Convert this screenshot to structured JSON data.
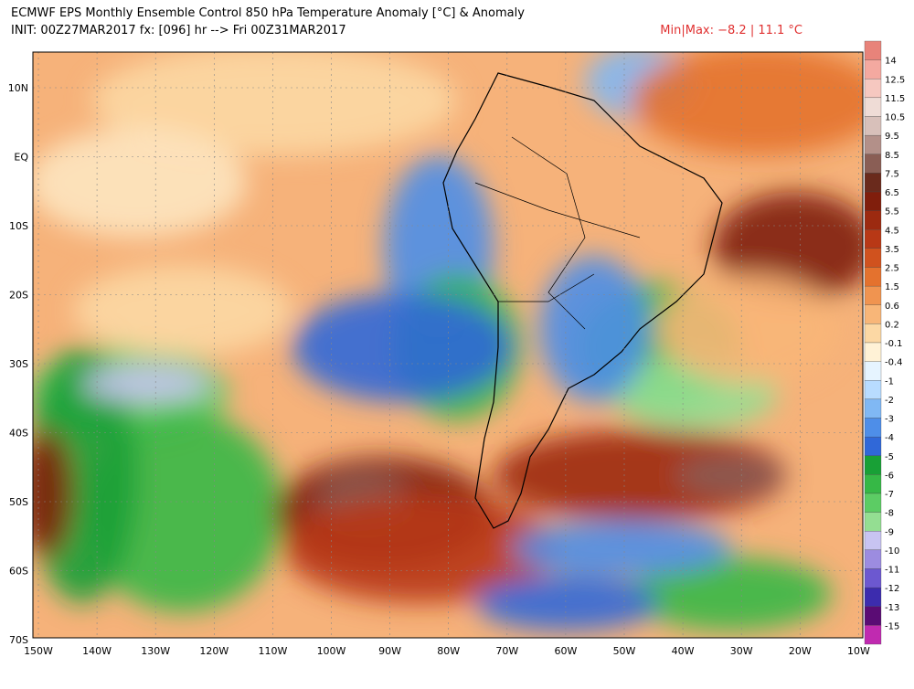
{
  "header": {
    "title": "ECMWF EPS Monthly Ensemble Control 850 hPa Temperature Anomaly [°C] & Anomaly",
    "init": "INIT: 00Z27MAR2017  fx: [096] hr --> Fri 00Z31MAR2017",
    "minmax": "Min|Max: −8.2 | 11.1 °C"
  },
  "map": {
    "lat_labels": [
      "10N",
      "EQ",
      "10S",
      "20S",
      "30S",
      "40S",
      "50S",
      "60S",
      "70S"
    ],
    "lon_labels": [
      "150W",
      "140W",
      "130W",
      "120W",
      "110W",
      "100W",
      "90W",
      "80W",
      "70W",
      "60W",
      "50W",
      "40W",
      "30W",
      "20W",
      "10W"
    ]
  },
  "colorbar": {
    "labels": [
      "14",
      "12.5",
      "11.5",
      "10.5",
      "9.5",
      "8.5",
      "7.5",
      "6.5",
      "5.5",
      "4.5",
      "3.5",
      "2.5",
      "1.5",
      "0.6",
      "0.2",
      "-0.1",
      "-0.4",
      "-1",
      "-2",
      "-3",
      "-4",
      "-5",
      "-6",
      "-7",
      "-8",
      "-9",
      "-10",
      "-11",
      "-12",
      "-13",
      "-15"
    ],
    "colors": [
      "#e8837a",
      "#f4a9a0",
      "#f6c8c0",
      "#efdcd6",
      "#d8c0ba",
      "#b39089",
      "#8a5e55",
      "#6a2a1c",
      "#801e0c",
      "#9c2a10",
      "#b83816",
      "#d0521e",
      "#e4722e",
      "#f09450",
      "#f8b678",
      "#fcd8a4",
      "#fff2d6",
      "#e6f4ff",
      "#b8dcff",
      "#80b8f4",
      "#4e8ee8",
      "#3068d8",
      "#18a036",
      "#36b846",
      "#5ccc64",
      "#94de92",
      "#c8c4f2",
      "#9c8ce0",
      "#6c58d0",
      "#3c2cae",
      "#5a0c74",
      "#c02ab0"
    ]
  }
}
